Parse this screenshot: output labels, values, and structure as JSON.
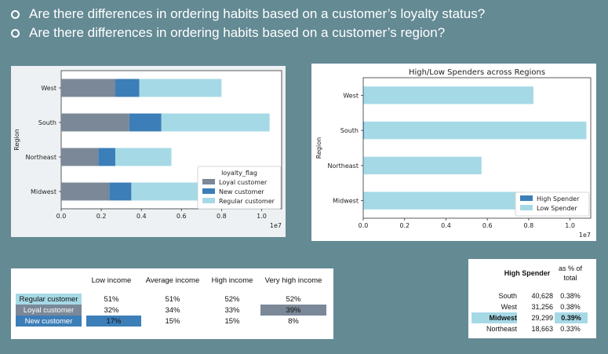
{
  "bullets": [
    "Are there differences in ordering habits based on a customer’s loyalty status?",
    "Are there differences in ordering habits based on a customer’s region?"
  ],
  "chart_data": [
    {
      "type": "bar",
      "orientation": "horizontal",
      "stacked": true,
      "title": "",
      "ylabel": "Region",
      "categories": [
        "West",
        "South",
        "Northeast",
        "Midwest"
      ],
      "xlim": [
        0,
        1.1
      ],
      "xticks": [
        "0.0",
        "0.2",
        "0.4",
        "0.6",
        "0.8",
        "1.0"
      ],
      "xscale_note": "1e7",
      "legend_title": "loyalty_flag",
      "legend_position": "lower-right",
      "series": [
        {
          "name": "Loyal customer",
          "color": "#7b8898",
          "values": [
            0.27,
            0.34,
            0.185,
            0.24
          ]
        },
        {
          "name": "New customer",
          "color": "#3c7eb8",
          "values": [
            0.12,
            0.16,
            0.085,
            0.11
          ]
        },
        {
          "name": "Regular customer",
          "color": "#a6d9e6",
          "values": [
            0.41,
            0.54,
            0.28,
            0.58
          ]
        }
      ]
    },
    {
      "type": "bar",
      "orientation": "horizontal",
      "stacked": true,
      "title": "High/Low Spenders across Regions",
      "ylabel": "Region",
      "categories": [
        "West",
        "South",
        "Northeast",
        "Midwest"
      ],
      "xlim": [
        0,
        1.1
      ],
      "xticks": [
        "0.0",
        "0.2",
        "0.4",
        "0.6",
        "0.8",
        "1.0"
      ],
      "xscale_note": "1e7",
      "legend_position": "lower-right",
      "series": [
        {
          "name": "High Spender",
          "color": "#3c7eb8",
          "values": [
            0.003,
            0.004,
            0.002,
            0.003
          ]
        },
        {
          "name": "Low Spender",
          "color": "#a6d9e6",
          "values": [
            0.82,
            1.075,
            0.57,
            0.77
          ]
        }
      ]
    },
    {
      "type": "table",
      "columns": [
        "",
        "Low income",
        "Average income",
        "High income",
        "Very high income"
      ],
      "rows": [
        {
          "label": "Regular customer",
          "values": [
            "51%",
            "51%",
            "52%",
            "52%"
          ]
        },
        {
          "label": "Loyal customer",
          "values": [
            "32%",
            "34%",
            "33%",
            "39%"
          ]
        },
        {
          "label": "New customer",
          "values": [
            "17%",
            "15%",
            "15%",
            "8%"
          ]
        }
      ]
    },
    {
      "type": "table",
      "columns": [
        "",
        "High Spender",
        "as % of total"
      ],
      "rows": [
        {
          "label": "South",
          "values": [
            "40,628",
            "0.38%"
          ]
        },
        {
          "label": "West",
          "values": [
            "31,256",
            "0.38%"
          ]
        },
        {
          "label": "Midwest",
          "values": [
            "29,299",
            "0.39%"
          ]
        },
        {
          "label": "Northeast",
          "values": [
            "18,663",
            "0.33%"
          ]
        }
      ]
    }
  ],
  "colors": {
    "background": "#648a94",
    "highlight_light": "#a6d9e6",
    "highlight_gray": "#7b8898",
    "highlight_blue": "#3c7eb8"
  }
}
